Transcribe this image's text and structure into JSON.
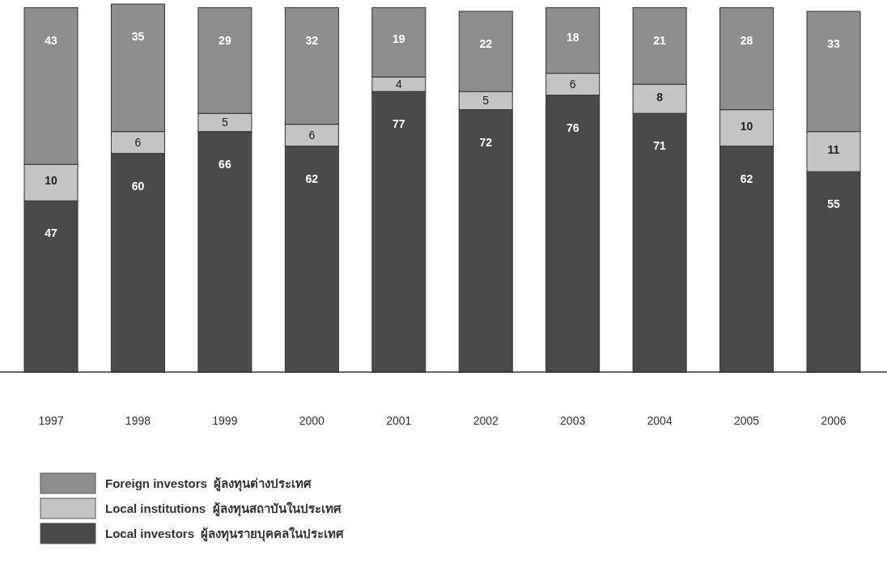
{
  "chart_data": {
    "type": "bar",
    "stacked": true,
    "data_labels": true,
    "legend": "bottom left",
    "categories": [
      "1997",
      "1998",
      "1999",
      "2000",
      "2001",
      "2002",
      "2003",
      "2004",
      "2005",
      "2006"
    ],
    "series": [
      {
        "name": "Local investors  ผู้ลงทุนรายบุคคลในประเทศ",
        "color": "#4a4a4a",
        "values": [
          47,
          60,
          66,
          62,
          77,
          72,
          76,
          71,
          62,
          55
        ]
      },
      {
        "name": "Local institutions  ผู้ลงทุนสถาบันในประเทศ",
        "color": "#c4c4c4",
        "values": [
          10,
          6,
          5,
          6,
          4,
          5,
          6,
          8,
          10,
          11
        ]
      },
      {
        "name": "Foreign investors  ผู้ลงทุนต่างประเทศ",
        "color": "#8e8e8e",
        "values": [
          43,
          35,
          29,
          32,
          19,
          22,
          18,
          21,
          28,
          33
        ]
      }
    ]
  }
}
